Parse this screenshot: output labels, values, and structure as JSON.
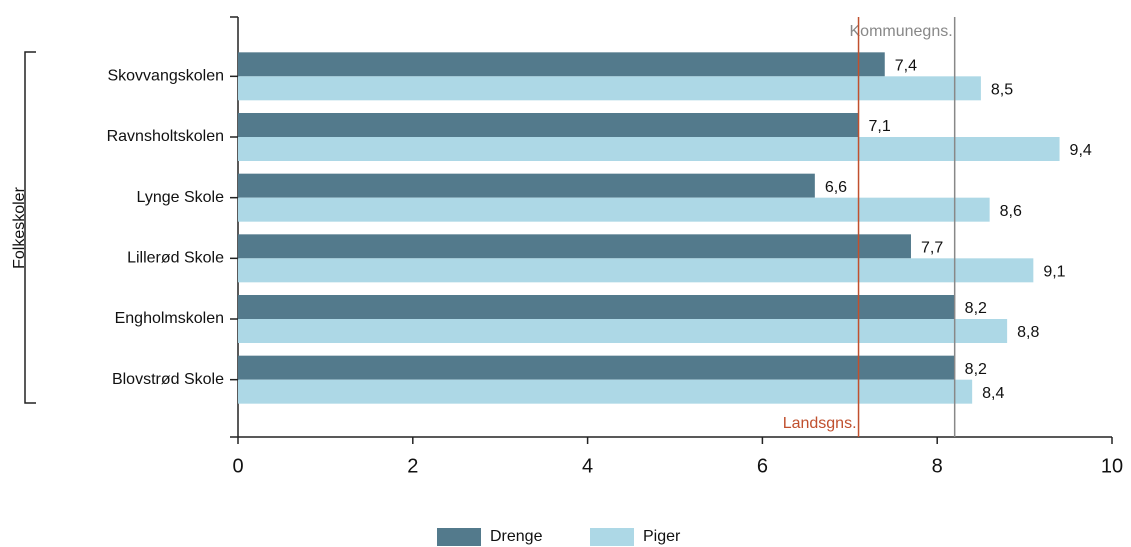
{
  "chart_data": {
    "type": "bar",
    "orientation": "horizontal",
    "group_label": "Folkeskoler",
    "categories": [
      "Skovvangskolen",
      "Ravnsholtskolen",
      "Lynge Skole",
      "Lillerød Skole",
      "Engholmskolen",
      "Blovstrød Skole"
    ],
    "series": [
      {
        "name": "Drenge",
        "color": "#537a8c",
        "values": [
          7.4,
          7.1,
          6.6,
          7.7,
          8.2,
          8.2
        ],
        "value_labels": [
          "7,4",
          "7,1",
          "6,6",
          "7,7",
          "8,2",
          "8,2"
        ]
      },
      {
        "name": "Piger",
        "color": "#add8e6",
        "values": [
          8.5,
          9.4,
          8.6,
          9.1,
          8.8,
          8.4
        ],
        "value_labels": [
          "8,5",
          "9,4",
          "8,6",
          "9,1",
          "8,8",
          "8,4"
        ]
      }
    ],
    "xlim": [
      0,
      10
    ],
    "xticks": [
      0,
      2,
      4,
      6,
      8,
      10
    ],
    "reference_lines": [
      {
        "label": "Kommunegns.",
        "value": 8.2,
        "color": "#888888",
        "label_position": "top"
      },
      {
        "label": "Landsgns.",
        "value": 7.1,
        "color": "#c0502e",
        "label_position": "bottom"
      }
    ],
    "legend": "bottom"
  }
}
